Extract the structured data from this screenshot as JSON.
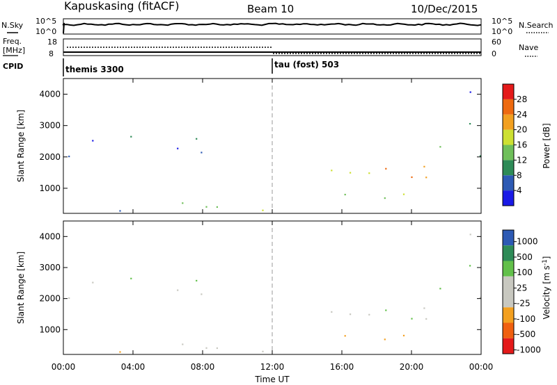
{
  "header": {
    "station": "Kapuskasing (fitACF)",
    "beam": "Beam 10",
    "date": "10/Dec/2015"
  },
  "noise_panel": {
    "left_label": "N.Sky",
    "right_label": "N.Search",
    "left_ticks": [
      "10^5",
      "10^0"
    ],
    "right_ticks": [
      "10^5",
      "10^0"
    ]
  },
  "freq_panel": {
    "left_label_line1": "Freq.",
    "left_label_line2": "[MHz]",
    "right_label": "Nave",
    "left_ticks": [
      "18",
      "8"
    ],
    "right_ticks": [
      "60",
      "0"
    ]
  },
  "cpid": {
    "label": "CPID",
    "segments": [
      {
        "name": "themis 3300",
        "start_hour": 0
      },
      {
        "name": "tau (fost) 503",
        "start_hour": 12
      }
    ]
  },
  "colors": {
    "power_scale": [
      "#1a1ae6",
      "#2d5ab4",
      "#2e8b57",
      "#6fbf5a",
      "#cde032",
      "#f2a020",
      "#ee6a10",
      "#e41a1a"
    ],
    "velocity_scale": [
      "#e41a1a",
      "#f06010",
      "#f3a020",
      "#c8c8c0",
      "#c8c8c0",
      "#62c04a",
      "#2e8b57",
      "#2d5ab4"
    ]
  },
  "chart_data": [
    {
      "type": "heatmap",
      "quantity": "power",
      "ylabel": "Slant Range [km]",
      "yticks": [
        "1000",
        "2000",
        "3000",
        "4000"
      ],
      "ylim": [
        200,
        4500
      ],
      "xlim": [
        0,
        24
      ],
      "colorbar_label": "Power [dB]",
      "colorbar_ticks": [
        "4",
        "8",
        "12",
        "16",
        "20",
        "24",
        "28"
      ],
      "colorbar_range": [
        0,
        32
      ],
      "regions": [
        {
          "t0": 0.0,
          "t1": 11.8,
          "r0": 250,
          "r1": 600,
          "v": 12
        },
        {
          "t0": 0.0,
          "t1": 0.6,
          "r0": 1500,
          "r1": 2500,
          "v": 10
        },
        {
          "t0": 1.0,
          "t1": 3.0,
          "r0": 2300,
          "r1": 2900,
          "v": 8
        },
        {
          "t0": 3.4,
          "t1": 5.0,
          "r0": 2500,
          "r1": 3100,
          "v": 6
        },
        {
          "t0": 5.0,
          "t1": 8.6,
          "r0": 2150,
          "r1": 2900,
          "v": 7
        },
        {
          "t0": 13.0,
          "t1": 23.6,
          "r0": 1300,
          "r1": 1900,
          "v": 22
        },
        {
          "t0": 15.0,
          "t1": 21.0,
          "r0": 600,
          "r1": 1000,
          "v": 14
        },
        {
          "t0": 21.5,
          "t1": 24.0,
          "r0": 1800,
          "r1": 2400,
          "v": 10
        },
        {
          "t0": 22.8,
          "t1": 24.0,
          "r0": 3000,
          "r1": 4300,
          "v": 6
        }
      ]
    },
    {
      "type": "heatmap",
      "quantity": "velocity",
      "ylabel": "Slant Range [km]",
      "yticks": [
        "1000",
        "2000",
        "3000",
        "4000"
      ],
      "ylim": [
        200,
        4500
      ],
      "xlim": [
        0,
        24
      ],
      "xlabel": "Time UT",
      "xticks": [
        "00:00",
        "04:00",
        "08:00",
        "12:00",
        "16:00",
        "20:00",
        "00:00"
      ],
      "colorbar_label": "Velocity [m s",
      "colorbar_label_sup": "-1",
      "colorbar_ticks": [
        "1000",
        "500",
        "100",
        "25",
        "-25",
        "-100",
        "-500",
        "-1000"
      ],
      "regions": [
        {
          "t0": 0.0,
          "t1": 11.8,
          "r0": 250,
          "r1": 600,
          "v": -100
        },
        {
          "t0": 0.0,
          "t1": 0.6,
          "r0": 1500,
          "r1": 2500,
          "v": 0
        },
        {
          "t0": 1.0,
          "t1": 3.0,
          "r0": 2300,
          "r1": 2900,
          "v": 0
        },
        {
          "t0": 3.4,
          "t1": 5.0,
          "r0": 2500,
          "r1": 3100,
          "v": 0
        },
        {
          "t0": 5.0,
          "t1": 8.6,
          "r0": 2150,
          "r1": 2900,
          "v": 0
        },
        {
          "t0": 13.0,
          "t1": 23.6,
          "r0": 1300,
          "r1": 1900,
          "v": 0
        },
        {
          "t0": 15.0,
          "t1": 21.0,
          "r0": 600,
          "r1": 1000,
          "v": -200
        },
        {
          "t0": 21.5,
          "t1": 24.0,
          "r0": 1800,
          "r1": 2400,
          "v": 0
        },
        {
          "t0": 22.8,
          "t1": 24.0,
          "r0": 3000,
          "r1": 4300,
          "v": 0
        }
      ]
    }
  ]
}
